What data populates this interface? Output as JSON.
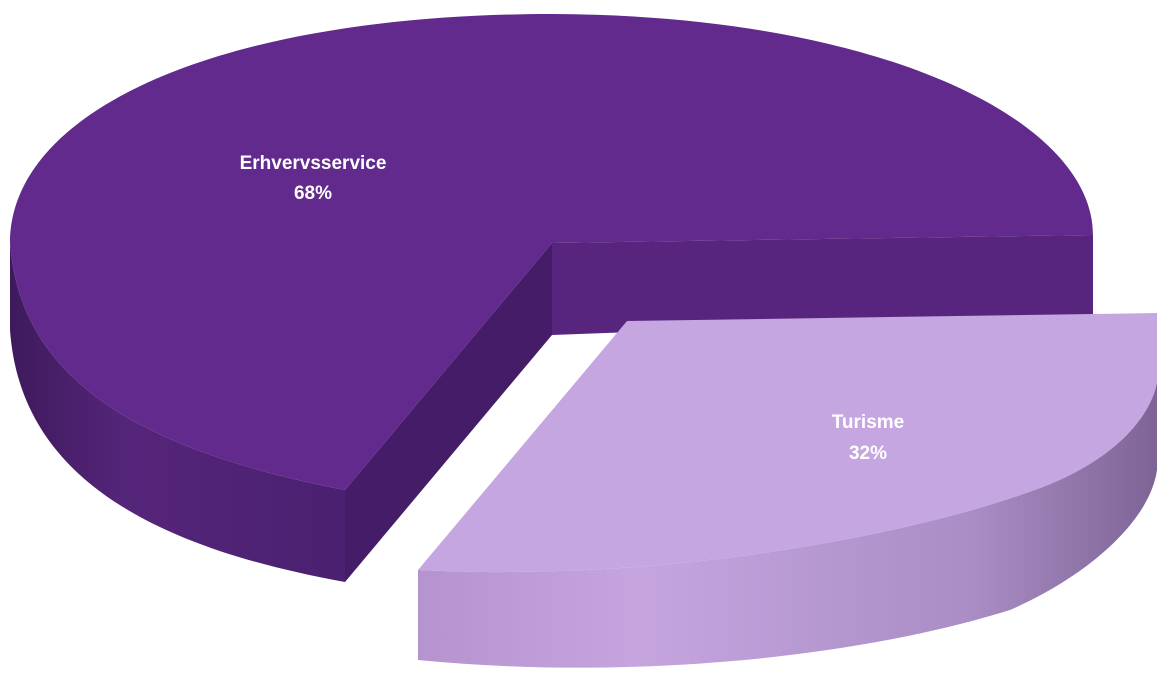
{
  "chart_data": {
    "type": "pie",
    "style": "3d-exploded",
    "title": "",
    "categories": [
      "Erhvervsservice",
      "Turisme"
    ],
    "values": [
      68,
      32
    ],
    "labels": [
      {
        "name": "Erhvervsservice",
        "percent": "68%"
      },
      {
        "name": "Turisme",
        "percent": "32%"
      }
    ],
    "colors": {
      "Erhvervsservice": "#622A8C",
      "Turisme": "#C5A6E0"
    },
    "exploded": "Turisme",
    "legend": "none"
  }
}
